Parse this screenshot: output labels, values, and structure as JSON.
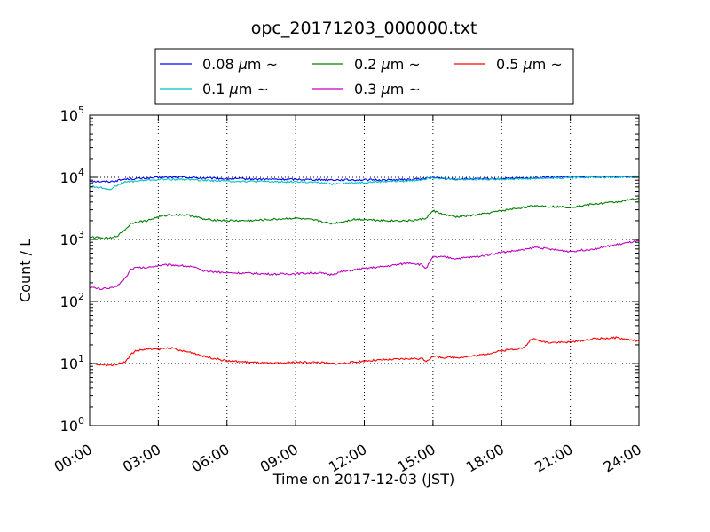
{
  "chart_data": {
    "type": "line",
    "title": "opc_20171203_000000.txt",
    "xlabel": "Time on 2017-12-03 (JST)",
    "ylabel": "Count / L",
    "x_range_hours": [
      0,
      24
    ],
    "y_scale": "log",
    "ylim": [
      1,
      100000
    ],
    "grid": true,
    "legend_position": "top-center",
    "x_ticks": [
      {
        "hour": 0,
        "label": "00:00"
      },
      {
        "hour": 3,
        "label": "03:00"
      },
      {
        "hour": 6,
        "label": "06:00"
      },
      {
        "hour": 9,
        "label": "09:00"
      },
      {
        "hour": 12,
        "label": "12:00"
      },
      {
        "hour": 15,
        "label": "15:00"
      },
      {
        "hour": 18,
        "label": "18:00"
      },
      {
        "hour": 21,
        "label": "21:00"
      },
      {
        "hour": 24,
        "label": "24:00"
      }
    ],
    "y_ticks": [
      {
        "value": 1,
        "base": "10",
        "exp": "0"
      },
      {
        "value": 10,
        "base": "10",
        "exp": "1"
      },
      {
        "value": 100,
        "base": "10",
        "exp": "2"
      },
      {
        "value": 1000,
        "base": "10",
        "exp": "3"
      },
      {
        "value": 10000,
        "base": "10",
        "exp": "4"
      },
      {
        "value": 100000,
        "base": "10",
        "exp": "5"
      }
    ],
    "series": [
      {
        "name": "0.08 μm ~",
        "label_size": "0.08",
        "color": "#0000ff",
        "x": [
          0,
          0.5,
          1.0,
          1.5,
          2.0,
          2.5,
          3.0,
          3.5,
          4.0,
          4.5,
          5.0,
          6.0,
          7.0,
          8.0,
          9.0,
          10.0,
          11.0,
          12.0,
          13.0,
          14.0,
          14.5,
          15.0,
          15.5,
          16.0,
          17.0,
          18.0,
          19.0,
          20.0,
          21.0,
          22.0,
          23.0,
          24.0
        ],
        "y": [
          8800,
          8500,
          8600,
          9300,
          9500,
          9700,
          9900,
          10000,
          10100,
          9900,
          9700,
          9500,
          9400,
          9300,
          9300,
          9200,
          9100,
          9100,
          9100,
          9200,
          9500,
          10000,
          9500,
          9400,
          9400,
          9500,
          9700,
          10000,
          10100,
          10200,
          10300,
          10500
        ]
      },
      {
        "name": "0.1 μm ~",
        "label_size": "0.1",
        "color": "#00bfbf",
        "x": [
          0,
          0.5,
          0.8,
          1.0,
          1.2,
          1.5,
          2.0,
          2.5,
          3.0,
          3.5,
          4.0,
          4.5,
          5.0,
          6.0,
          7.0,
          8.0,
          9.0,
          10.0,
          10.5,
          11.0,
          12.0,
          13.0,
          14.0,
          14.5,
          15.0,
          15.5,
          16.0,
          17.0,
          18.0,
          19.0,
          20.0,
          21.0,
          22.0,
          23.0,
          24.0
        ],
        "y": [
          7200,
          6800,
          6500,
          6600,
          7500,
          8300,
          8700,
          9000,
          9200,
          9300,
          9300,
          9200,
          9000,
          8700,
          8600,
          8500,
          8500,
          8200,
          7800,
          8000,
          8300,
          8600,
          8800,
          9200,
          10000,
          9500,
          9300,
          9300,
          9400,
          9500,
          9700,
          9900,
          10000,
          10100,
          10300
        ]
      },
      {
        "name": "0.2 μm ~",
        "label_size": "0.2",
        "color": "#008000",
        "x": [
          0,
          0.5,
          1.0,
          1.3,
          1.6,
          1.8,
          2.0,
          2.5,
          3.0,
          3.5,
          4.0,
          4.5,
          5.0,
          6.0,
          7.0,
          8.0,
          9.0,
          10.0,
          10.5,
          11.0,
          11.5,
          12.0,
          13.0,
          14.0,
          14.5,
          14.7,
          15.0,
          15.5,
          16.0,
          17.0,
          18.0,
          19.0,
          19.5,
          20.0,
          21.0,
          22.0,
          23.0,
          24.0
        ],
        "y": [
          1100,
          1050,
          1050,
          1200,
          1500,
          1800,
          1900,
          2000,
          2300,
          2500,
          2500,
          2400,
          2100,
          2000,
          2000,
          2100,
          2200,
          2000,
          1800,
          1900,
          2100,
          2100,
          2000,
          2000,
          2100,
          2200,
          2900,
          2500,
          2300,
          2500,
          2900,
          3300,
          3500,
          3400,
          3300,
          3700,
          4000,
          4600
        ]
      },
      {
        "name": "0.3 μm ~",
        "label_size": "0.3",
        "color": "#bf00bf",
        "x": [
          0,
          0.5,
          1.0,
          1.3,
          1.6,
          1.8,
          2.0,
          2.5,
          3.0,
          3.5,
          4.0,
          4.5,
          5.0,
          6.0,
          7.0,
          8.0,
          9.0,
          10.0,
          10.5,
          11.0,
          12.0,
          13.0,
          14.0,
          14.5,
          14.7,
          15.0,
          15.5,
          16.0,
          17.0,
          18.0,
          19.0,
          19.5,
          20.0,
          21.0,
          22.0,
          23.0,
          24.0
        ],
        "y": [
          170,
          160,
          165,
          190,
          250,
          330,
          350,
          350,
          380,
          390,
          380,
          360,
          310,
          290,
          285,
          275,
          280,
          290,
          270,
          300,
          340,
          370,
          420,
          390,
          340,
          520,
          520,
          490,
          530,
          620,
          680,
          750,
          700,
          640,
          700,
          820,
          950
        ]
      },
      {
        "name": "0.5 μm ~",
        "label_size": "0.5",
        "color": "#ff0000",
        "x": [
          0,
          0.5,
          1.0,
          1.3,
          1.6,
          1.8,
          2.0,
          2.5,
          3.0,
          3.5,
          4.0,
          4.5,
          5.0,
          5.5,
          6.0,
          7.0,
          8.0,
          9.0,
          10.0,
          10.5,
          11.0,
          12.0,
          13.0,
          14.0,
          14.5,
          14.7,
          15.0,
          15.5,
          16.0,
          17.0,
          18.0,
          18.5,
          19.0,
          19.3,
          20.0,
          21.0,
          22.0,
          23.0,
          24.0
        ],
        "y": [
          10,
          9.5,
          9.5,
          10,
          11,
          14,
          16,
          17,
          17,
          18,
          16,
          15,
          13,
          12,
          11,
          10.5,
          10,
          10.5,
          10.5,
          10,
          10,
          11,
          11.5,
          12,
          12,
          11,
          13,
          12.5,
          12.5,
          13.5,
          16,
          17,
          18,
          25,
          22,
          22,
          25,
          26,
          23
        ]
      }
    ]
  }
}
